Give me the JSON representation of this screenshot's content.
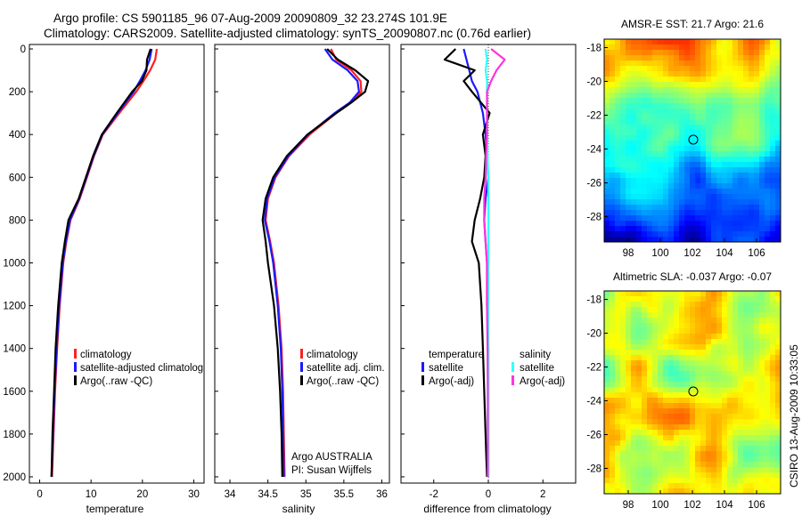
{
  "header": {
    "line1": "Argo profile: CS 5901185_96 07-Aug-2009 20090809_32 23.274S 101.9E",
    "line2": "Climatology: CARS2009. Satellite-adjusted climatology: synTS_20090807.nc (0.76d earlier)"
  },
  "side_stamp": "CSIRO 13-Aug-2009 10:33:05",
  "colors": {
    "climatology": "#ff2020",
    "satellite": "#1a1aff",
    "argo": "#000000",
    "salinity_satellite": "#33ffff",
    "salinity_argo": "#ff33dd",
    "map_sea": "#1e6bd6",
    "map_land": "#3cc83c"
  },
  "panel_temperature": {
    "xlabel": "temperature",
    "xticks": [
      "0",
      "10",
      "20",
      "30"
    ],
    "legend": [
      "climatology",
      "satellite-adjusted climatolog",
      "Argo(..raw -QC)"
    ]
  },
  "panel_salinity": {
    "xlabel": "salinity",
    "xticks": [
      "34",
      "34.5",
      "35",
      "35.5",
      "36"
    ],
    "legend": [
      "climatology",
      "satellite adj. clim.",
      "Argo(..raw -QC)"
    ],
    "note_line1": "Argo AUSTRALIA",
    "note_line2": "PI: Susan Wijffels"
  },
  "panel_difference": {
    "xlabel": "difference from climatology",
    "xticks": [
      "-2",
      "0",
      "2"
    ],
    "legend_head_left": "temperature",
    "legend_head_right": "salinity",
    "legend_left": [
      "satellite",
      "Argo(-adj)"
    ],
    "legend_right": [
      "satellite",
      "Argo(-adj)"
    ]
  },
  "depth_ticks": [
    "0",
    "200",
    "400",
    "600",
    "800",
    "1000",
    "1200",
    "1400",
    "1600",
    "1800",
    "2000"
  ],
  "map_sst": {
    "title": "AMSR-E SST: 21.7 Argo: 21.6",
    "yticks": [
      "-18",
      "-20",
      "-22",
      "-24",
      "-26",
      "-28"
    ],
    "xticks": [
      "98",
      "100",
      "102",
      "104",
      "106"
    ]
  },
  "map_sla": {
    "title": "Altimetric SLA: -0.037 Argo: -0.07",
    "yticks": [
      "-18",
      "-20",
      "-22",
      "-24",
      "-26",
      "-28"
    ],
    "xticks": [
      "98",
      "100",
      "102",
      "104",
      "106"
    ]
  },
  "chart_data": [
    {
      "type": "line",
      "xlabel": "temperature",
      "ylabel": "",
      "xlim": [
        -2,
        32
      ],
      "ylim": [
        2050,
        0
      ],
      "series": [
        {
          "name": "climatology",
          "depth": [
            0,
            50,
            100,
            150,
            200,
            300,
            400,
            500,
            600,
            700,
            800,
            900,
            1000,
            1200,
            1400,
            1600,
            1800,
            2000
          ],
          "values": [
            22.8,
            22.5,
            21.5,
            20.2,
            18.8,
            15.5,
            12.3,
            10.6,
            9.2,
            7.8,
            6.0,
            5.2,
            4.6,
            3.9,
            3.4,
            3.0,
            2.7,
            2.4
          ]
        },
        {
          "name": "satellite-adjusted climatolog",
          "depth": [
            0,
            50,
            100,
            150,
            200,
            300,
            400,
            500,
            600,
            700,
            800,
            900,
            1000,
            1200,
            1400,
            1600,
            1800,
            2000
          ],
          "values": [
            21.8,
            21.4,
            20.6,
            19.5,
            18.3,
            15.2,
            12.2,
            10.5,
            9.1,
            7.7,
            5.9,
            5.1,
            4.5,
            3.8,
            3.3,
            2.9,
            2.6,
            2.3
          ]
        },
        {
          "name": "Argo(..raw -QC)",
          "depth": [
            0,
            50,
            100,
            150,
            200,
            300,
            400,
            500,
            600,
            700,
            800,
            900,
            1000,
            1200,
            1400,
            1600,
            1800,
            2000
          ],
          "values": [
            21.6,
            20.9,
            20.8,
            19.9,
            18.0,
            15.0,
            12.1,
            10.4,
            9.0,
            7.6,
            5.6,
            4.9,
            4.3,
            3.6,
            3.1,
            2.8,
            2.5,
            2.3
          ]
        }
      ]
    },
    {
      "type": "line",
      "xlabel": "salinity",
      "ylabel": "",
      "xlim": [
        33.8,
        36.1
      ],
      "ylim": [
        2050,
        0
      ],
      "series": [
        {
          "name": "climatology",
          "depth": [
            0,
            50,
            100,
            150,
            200,
            250,
            300,
            400,
            500,
            600,
            700,
            800,
            900,
            1000,
            1200,
            1400,
            1600,
            1800,
            2000
          ],
          "values": [
            35.33,
            35.4,
            35.6,
            35.72,
            35.73,
            35.6,
            35.4,
            35.05,
            34.78,
            34.6,
            34.5,
            34.47,
            34.53,
            34.58,
            34.64,
            34.68,
            34.7,
            34.71,
            34.72
          ]
        },
        {
          "name": "satellite adj. clim.",
          "depth": [
            0,
            50,
            100,
            150,
            200,
            250,
            300,
            400,
            500,
            600,
            700,
            800,
            900,
            1000,
            1200,
            1400,
            1600,
            1800,
            2000
          ],
          "values": [
            35.25,
            35.35,
            35.55,
            35.68,
            35.7,
            35.58,
            35.38,
            35.03,
            34.77,
            34.59,
            34.49,
            34.46,
            34.52,
            34.57,
            34.63,
            34.67,
            34.69,
            34.7,
            34.71
          ]
        },
        {
          "name": "Argo(..raw -QC)",
          "depth": [
            0,
            50,
            100,
            150,
            200,
            250,
            300,
            400,
            500,
            600,
            700,
            800,
            900,
            1000,
            1200,
            1400,
            1600,
            1800,
            2000
          ],
          "values": [
            35.28,
            35.42,
            35.65,
            35.82,
            35.78,
            35.6,
            35.4,
            35.02,
            34.75,
            34.57,
            34.47,
            34.43,
            34.47,
            34.5,
            34.58,
            34.63,
            34.66,
            34.68,
            34.69
          ]
        }
      ]
    },
    {
      "type": "line",
      "xlabel": "difference from climatology",
      "ylabel": "",
      "xlim": [
        -3.2,
        3.2
      ],
      "ylim": [
        2050,
        0
      ],
      "series": [
        {
          "name": "temperature satellite",
          "depth": [
            0,
            50,
            100,
            150,
            200,
            300,
            400,
            500,
            600,
            700,
            800,
            900,
            1000,
            1200,
            1400,
            1600,
            1800,
            2000
          ],
          "values": [
            -0.9,
            -0.8,
            -0.7,
            -0.6,
            -0.4,
            -0.2,
            -0.1,
            -0.05,
            0.0,
            -0.1,
            -0.15,
            -0.1,
            -0.05,
            -0.05,
            0.0,
            0.0,
            0.0,
            0.0
          ]
        },
        {
          "name": "temperature Argo(-adj)",
          "depth": [
            0,
            50,
            100,
            150,
            200,
            300,
            400,
            500,
            600,
            700,
            800,
            900,
            1000,
            1200,
            1400,
            1600,
            1800,
            2000
          ],
          "values": [
            -1.2,
            -1.6,
            -0.5,
            -0.9,
            -0.6,
            0.05,
            -0.2,
            -0.1,
            -0.15,
            -0.3,
            -0.5,
            -0.6,
            -0.35,
            -0.25,
            -0.2,
            -0.15,
            -0.1,
            -0.05
          ]
        },
        {
          "name": "salinity satellite",
          "depth": [
            0,
            50,
            100,
            150,
            200,
            300,
            400,
            500,
            600,
            700,
            800,
            900,
            1000,
            1200,
            1400,
            1600,
            1800,
            2000
          ],
          "values": [
            -0.1,
            -0.05,
            -0.1,
            -0.05,
            -0.05,
            -0.05,
            -0.05,
            -0.03,
            0.0,
            0.0,
            0.0,
            0.0,
            0.0,
            0.0,
            0.0,
            0.0,
            0.0,
            0.0
          ]
        },
        {
          "name": "salinity Argo(-adj)",
          "depth": [
            0,
            50,
            100,
            150,
            200,
            300,
            400,
            500,
            600,
            700,
            800,
            900,
            1000,
            1200,
            1400,
            1600,
            1800,
            2000
          ],
          "values": [
            0.1,
            0.6,
            0.3,
            0.1,
            -0.05,
            -0.05,
            -0.05,
            -0.08,
            -0.1,
            -0.15,
            -0.15,
            -0.1,
            -0.05,
            -0.05,
            -0.03,
            -0.02,
            -0.02,
            -0.02
          ]
        }
      ]
    },
    {
      "type": "heatmap",
      "title": "AMSR-E SST: 21.7 Argo: 21.6",
      "xlim": [
        96.5,
        107.5
      ],
      "ylim": [
        -29.5,
        -17.5
      ],
      "marker": {
        "lon": 101.9,
        "lat": -23.274
      }
    },
    {
      "type": "heatmap",
      "title": "Altimetric SLA: -0.037 Argo: -0.07",
      "xlim": [
        96.5,
        107.5
      ],
      "ylim": [
        -29.5,
        -17.5
      ],
      "marker": {
        "lon": 101.9,
        "lat": -23.274
      }
    }
  ]
}
